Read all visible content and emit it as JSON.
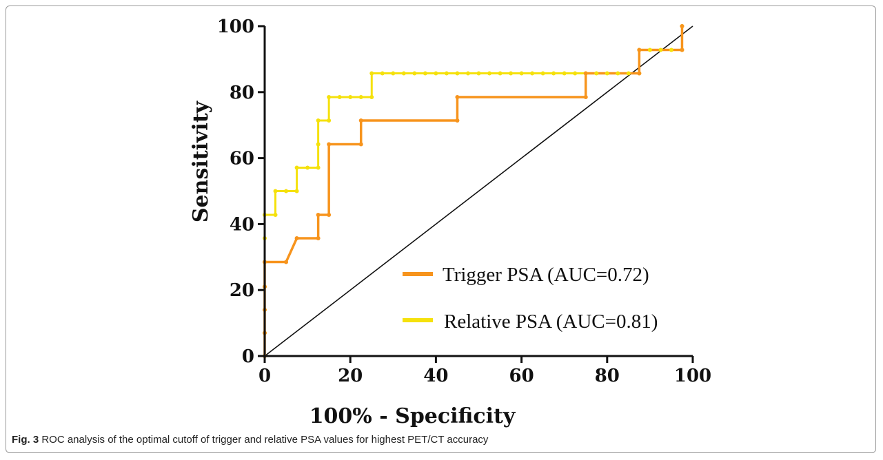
{
  "chart_data": {
    "type": "line",
    "xlabel": "100% - Specificity",
    "ylabel": "Sensitivity",
    "xlim": [
      0,
      100
    ],
    "ylim": [
      0,
      100
    ],
    "xticks": [
      "0",
      "20",
      "40",
      "60",
      "80",
      "100"
    ],
    "yticks": [
      "0",
      "20",
      "40",
      "60",
      "80",
      "100"
    ],
    "legend_position": "bottom-right",
    "grid": false,
    "reference_line": {
      "x": [
        0,
        100
      ],
      "y": [
        0,
        100
      ],
      "color": "#111111"
    },
    "series": [
      {
        "name": "Trigger PSA (AUC=0.72)",
        "color": "#f7941d",
        "x": [
          0,
          0,
          0,
          0,
          0,
          5,
          7.5,
          12.5,
          12.5,
          15,
          15,
          22.5,
          22.5,
          45,
          45,
          75,
          75,
          87.5,
          87.5,
          97.5,
          97.5
        ],
        "y": [
          0,
          7,
          14,
          21,
          28.5,
          28.5,
          35.7,
          35.7,
          42.8,
          42.8,
          64.2,
          64.2,
          71.4,
          71.4,
          78.5,
          78.5,
          85.7,
          85.7,
          92.8,
          92.8,
          100
        ]
      },
      {
        "name": "Relative PSA (AUC=0.81)",
        "color": "#f5e10c",
        "x": [
          0,
          0,
          0,
          0,
          0,
          0,
          0,
          2.5,
          2.5,
          5,
          7.5,
          7.5,
          10,
          12.5,
          12.5,
          12.5,
          15,
          15,
          17.5,
          20,
          22.5,
          25,
          25,
          27.5,
          30,
          32.5,
          35,
          37.5,
          40,
          42.5,
          45,
          47.5,
          50,
          52.5,
          55,
          57.5,
          60,
          62.5,
          65,
          67.5,
          70,
          72.5,
          75,
          77.5,
          80,
          82.5,
          85,
          87.5,
          87.5,
          90,
          92.5,
          95,
          97.5,
          97.5
        ],
        "y": [
          0,
          7,
          14,
          21,
          28.5,
          35.7,
          42.8,
          42.8,
          50,
          50,
          50,
          57.1,
          57.1,
          57.1,
          64.2,
          71.4,
          71.4,
          78.5,
          78.5,
          78.5,
          78.5,
          78.5,
          85.7,
          85.7,
          85.7,
          85.7,
          85.7,
          85.7,
          85.7,
          85.7,
          85.7,
          85.7,
          85.7,
          85.7,
          85.7,
          85.7,
          85.7,
          85.7,
          85.7,
          85.7,
          85.7,
          85.7,
          85.7,
          85.7,
          85.7,
          85.7,
          85.7,
          85.7,
          92.8,
          92.8,
          92.8,
          92.8,
          92.8,
          100
        ]
      }
    ]
  },
  "caption": {
    "label": "Fig. 3",
    "text": "ROC analysis of the optimal cutoff of trigger and relative PSA values for highest PET/CT accuracy"
  }
}
